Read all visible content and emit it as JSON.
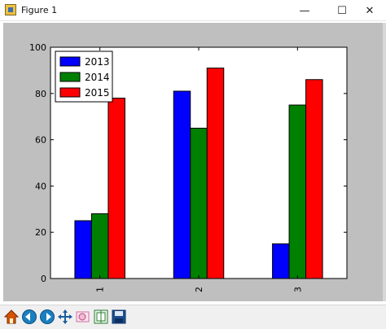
{
  "window": {
    "title": "Figure 1",
    "minimize_glyph": "—",
    "maximize_glyph": "☐",
    "close_glyph": "✕"
  },
  "toolbar": {
    "buttons": [
      {
        "name": "home-icon",
        "color": "#c0392b"
      },
      {
        "name": "back-icon",
        "color": "#1a7fc0"
      },
      {
        "name": "forward-icon",
        "color": "#1a7fc0"
      },
      {
        "name": "pan-icon",
        "color": "#1a5fa0"
      },
      {
        "name": "zoom-icon",
        "color": "#d070a0"
      },
      {
        "name": "subplots-icon",
        "color": "#2e7d32"
      },
      {
        "name": "save-icon",
        "color": "#1a4f90"
      }
    ]
  },
  "chart_data": {
    "type": "bar",
    "categories": [
      "1",
      "2",
      "3"
    ],
    "series": [
      {
        "name": "2013",
        "color": "#0000ff",
        "values": [
          25,
          81,
          15
        ]
      },
      {
        "name": "2014",
        "color": "#008000",
        "values": [
          28,
          65,
          75
        ]
      },
      {
        "name": "2015",
        "color": "#ff0000",
        "values": [
          78,
          91,
          86
        ]
      }
    ],
    "ylim": [
      0,
      100
    ],
    "yticks": [
      "0",
      "20",
      "40",
      "60",
      "80",
      "100"
    ],
    "xtick_rotation": 90,
    "legend_position": "top-left",
    "grid": false
  }
}
